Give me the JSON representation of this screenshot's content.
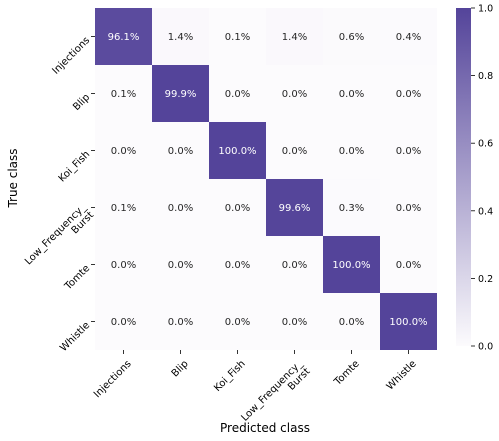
{
  "chart_data": {
    "type": "heatmap",
    "title": "",
    "xlabel": "Predicted class",
    "ylabel": "True class",
    "categories_x": [
      "Injections",
      "Blip",
      "Koi_Fish",
      [
        "Low_Frequency_",
        "Burst"
      ],
      "Tomte",
      "Whistle"
    ],
    "categories_y": [
      "Injections",
      "Blip",
      "Koi_Fish",
      [
        "Low_Frequency_",
        "Burst"
      ],
      "Tomte",
      "Whistle"
    ],
    "values": [
      [
        0.961,
        0.014,
        0.001,
        0.014,
        0.006,
        0.004
      ],
      [
        0.001,
        0.999,
        0.0,
        0.0,
        0.0,
        0.0
      ],
      [
        0.0,
        0.0,
        1.0,
        0.0,
        0.0,
        0.0
      ],
      [
        0.001,
        0.0,
        0.0,
        0.996,
        0.003,
        0.0
      ],
      [
        0.0,
        0.0,
        0.0,
        0.0,
        1.0,
        0.0
      ],
      [
        0.0,
        0.0,
        0.0,
        0.0,
        0.0,
        1.0
      ]
    ],
    "cell_labels": [
      [
        "96.1%",
        "1.4%",
        "0.1%",
        "1.4%",
        "0.6%",
        "0.4%"
      ],
      [
        "0.1%",
        "99.9%",
        "0.0%",
        "0.0%",
        "0.0%",
        "0.0%"
      ],
      [
        "0.0%",
        "0.0%",
        "100.0%",
        "0.0%",
        "0.0%",
        "0.0%"
      ],
      [
        "0.1%",
        "0.0%",
        "0.0%",
        "99.6%",
        "0.3%",
        "0.0%"
      ],
      [
        "0.0%",
        "0.0%",
        "0.0%",
        "0.0%",
        "100.0%",
        "0.0%"
      ],
      [
        "0.0%",
        "0.0%",
        "0.0%",
        "0.0%",
        "0.0%",
        "100.0%"
      ]
    ],
    "colorbar": {
      "range": [
        0.0,
        1.0
      ],
      "ticks": [
        "0.0",
        "0.2",
        "0.4",
        "0.6",
        "0.8",
        "1.0"
      ],
      "low_color": "#fcfbfd",
      "high_color": "#54449a"
    }
  }
}
